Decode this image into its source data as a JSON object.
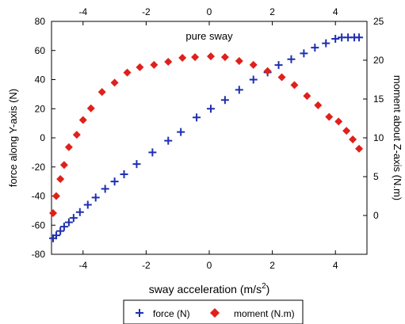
{
  "chart_data": {
    "type": "scatter",
    "title": "pure sway",
    "xlabel": "sway acceleration (m/s",
    "xlabel_superscript": "2",
    "xlabel_close": ")",
    "ylabel_left": "force along Y-axis (N)",
    "ylabel_right": "moment about Z-axis (N.m)",
    "xlim": [
      -5,
      5
    ],
    "ylim_left": [
      -80,
      80
    ],
    "ylim_right": [
      -5,
      25
    ],
    "xticks": [
      -4,
      -2,
      0,
      2,
      4
    ],
    "yticks_left": [
      -80,
      -60,
      -40,
      -20,
      0,
      20,
      40,
      60,
      80
    ],
    "yticks_right": [
      0,
      5,
      10,
      15,
      20,
      25
    ],
    "grid": false,
    "legend_position": "bottom",
    "series": [
      {
        "name": "force (N)",
        "axis": "left",
        "marker": "plus",
        "color": "#1f2fb0",
        "x": [
          -4.95,
          -4.85,
          -4.72,
          -4.6,
          -4.45,
          -4.3,
          -4.1,
          -3.85,
          -3.6,
          -3.3,
          -3.0,
          -2.7,
          -2.3,
          -1.8,
          -1.3,
          -0.9,
          -0.4,
          0.05,
          0.5,
          0.95,
          1.4,
          1.85,
          2.2,
          2.6,
          3.0,
          3.35,
          3.7,
          4.0,
          4.2,
          4.4,
          4.6,
          4.75
        ],
        "values": [
          -69,
          -67,
          -64,
          -61,
          -58,
          -55,
          -51,
          -46,
          -41,
          -35,
          -30,
          -25,
          -18,
          -10,
          -2,
          4,
          14,
          20,
          26,
          33,
          40,
          45,
          50,
          54,
          58,
          62,
          65,
          68,
          69,
          69,
          69,
          69
        ]
      },
      {
        "name": "moment (N.m)",
        "axis": "right",
        "marker": "diamond",
        "color": "#e0201b",
        "x": [
          -4.95,
          -4.85,
          -4.72,
          -4.6,
          -4.45,
          -4.2,
          -4.0,
          -3.75,
          -3.4,
          -3.0,
          -2.6,
          -2.2,
          -1.75,
          -1.3,
          -0.85,
          -0.45,
          0.05,
          0.5,
          0.95,
          1.4,
          1.85,
          2.3,
          2.7,
          3.1,
          3.45,
          3.8,
          4.1,
          4.35,
          4.55,
          4.75
        ],
        "values": [
          0.3,
          2.5,
          4.7,
          6.5,
          8.8,
          10.4,
          12.3,
          13.8,
          15.9,
          17.1,
          18.4,
          19.1,
          19.4,
          19.8,
          20.3,
          20.4,
          20.5,
          20.4,
          19.9,
          19.4,
          18.6,
          17.8,
          16.8,
          15.4,
          14.2,
          12.7,
          12.1,
          10.9,
          9.8,
          8.6
        ]
      }
    ]
  }
}
